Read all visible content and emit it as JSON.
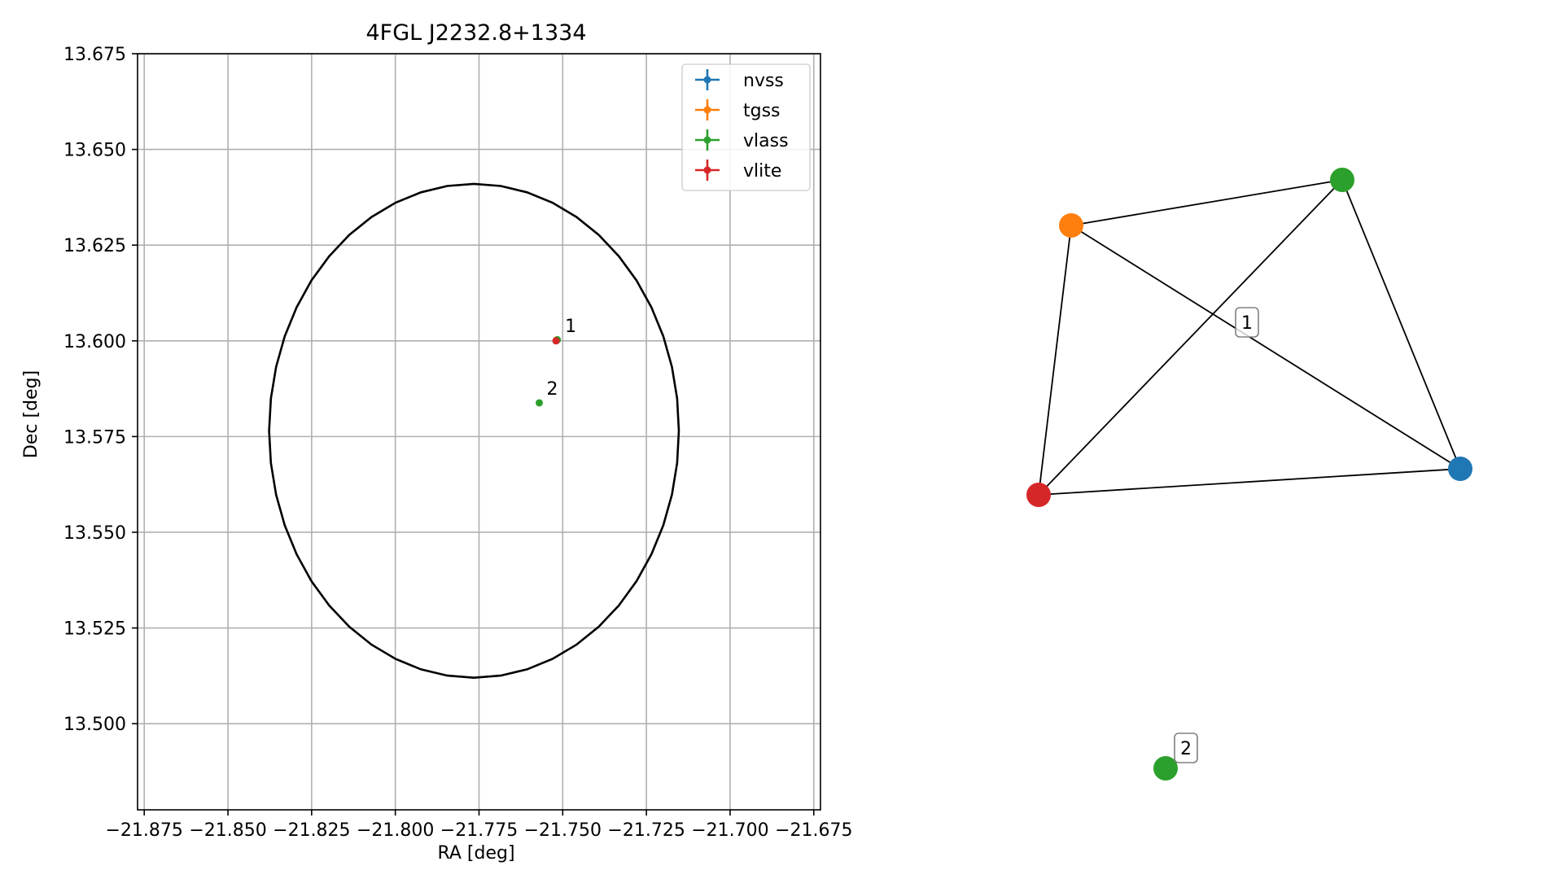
{
  "chart_data": [
    {
      "type": "scatter",
      "title": "4FGL J2232.8+1334",
      "xlabel": "RA [deg]",
      "ylabel": "Dec [deg]",
      "xlim": [
        -21.877,
        -21.673
      ],
      "ylim": [
        13.4775,
        13.675
      ],
      "grid": true,
      "xticks": [
        -21.875,
        -21.85,
        -21.825,
        -21.8,
        -21.775,
        -21.75,
        -21.725,
        -21.7,
        -21.675
      ],
      "xtick_labels": [
        "−21.875",
        "−21.850",
        "−21.825",
        "−21.800",
        "−21.775",
        "−21.750",
        "−21.725",
        "−21.700",
        "−21.675"
      ],
      "yticks": [
        13.675,
        13.65,
        13.625,
        13.6,
        13.575,
        13.55,
        13.525,
        13.5
      ],
      "ytick_labels": [
        "13.675",
        "13.650",
        "13.625",
        "13.600",
        "13.575",
        "13.550",
        "13.525",
        "13.500"
      ],
      "legend_position": "top-right",
      "series": [
        {
          "name": "nvss",
          "color": "#1f77b4",
          "points": [
            {
              "x": -21.7518,
              "y": 13.6001
            }
          ]
        },
        {
          "name": "tgss",
          "color": "#ff7f0e",
          "points": [
            {
              "x": -21.7519,
              "y": 13.6002
            }
          ]
        },
        {
          "name": "vlass",
          "color": "#2ca02c",
          "points": [
            {
              "x": -21.7516,
              "y": 13.6003
            },
            {
              "x": -21.757,
              "y": 13.5838
            }
          ]
        },
        {
          "name": "vlite",
          "color": "#d62728",
          "points": [
            {
              "x": -21.752,
              "y": 13.6
            }
          ]
        }
      ],
      "ellipse": {
        "center_ra": -21.7765,
        "center_dec": 13.5765,
        "semi_axis_ra": 0.0612,
        "semi_axis_dec": 0.0645,
        "color": "#000000"
      },
      "annotations": [
        {
          "text": "1",
          "x": -21.7515,
          "y": 13.6002
        },
        {
          "text": "2",
          "x": -21.757,
          "y": 13.5838
        }
      ]
    },
    {
      "type": "network",
      "nodes": [
        {
          "id": "nvss",
          "color": "#1f77b4",
          "group": "1"
        },
        {
          "id": "tgss",
          "color": "#ff7f0e",
          "group": "1"
        },
        {
          "id": "vlass",
          "color": "#2ca02c",
          "group": "1"
        },
        {
          "id": "vlite",
          "color": "#d62728",
          "group": "1"
        },
        {
          "id": "vlass-2",
          "color": "#2ca02c",
          "group": "2"
        }
      ],
      "edges": [
        [
          "tgss",
          "vlass"
        ],
        [
          "tgss",
          "vlite"
        ],
        [
          "tgss",
          "nvss"
        ],
        [
          "vlass",
          "vlite"
        ],
        [
          "vlass",
          "nvss"
        ],
        [
          "vlite",
          "nvss"
        ]
      ],
      "group_labels": [
        "1",
        "2"
      ]
    }
  ]
}
